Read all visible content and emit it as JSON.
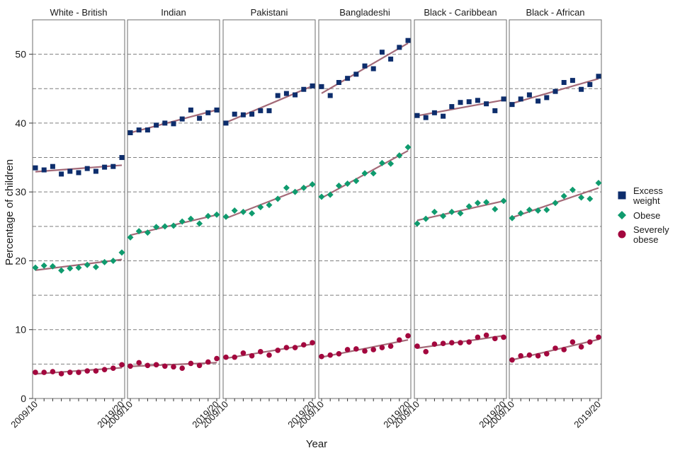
{
  "chart_data": {
    "type": "scatter",
    "title": "",
    "xlabel": "Year",
    "ylabel": "Percentage of children",
    "ylim": [
      0,
      55
    ],
    "yticks": [
      0,
      10,
      20,
      30,
      40,
      50
    ],
    "x_first_label": "2009/10",
    "x_last_label": "2019/20",
    "n_years": 11,
    "colors": {
      "excess": "#0d2d6c",
      "obese": "#0f9b6e",
      "severe": "#a3073e",
      "trend": "#9a5a6a",
      "grid": "#7f7f7f"
    },
    "legend": [
      {
        "key": "excess",
        "label_lines": [
          "Excess",
          "weight"
        ],
        "shape": "square"
      },
      {
        "key": "obese",
        "label_lines": [
          "Obese"
        ],
        "shape": "diamond"
      },
      {
        "key": "severe",
        "label_lines": [
          "Severely",
          "obese"
        ],
        "shape": "circle"
      }
    ],
    "panels": [
      {
        "name": "White - British",
        "excess": [
          33.5,
          33.2,
          33.7,
          32.6,
          33.0,
          32.8,
          33.4,
          33.0,
          33.6,
          33.7,
          35.0
        ],
        "obese": [
          19.0,
          19.3,
          19.2,
          18.6,
          18.9,
          19.0,
          19.4,
          19.1,
          19.8,
          20.0,
          21.2
        ],
        "severe": [
          3.8,
          3.8,
          3.9,
          3.6,
          3.8,
          3.8,
          4.0,
          4.0,
          4.2,
          4.4,
          4.9
        ]
      },
      {
        "name": "Indian",
        "excess": [
          38.6,
          39.0,
          39.0,
          39.7,
          40.0,
          39.9,
          40.6,
          41.9,
          40.7,
          41.5,
          41.9
        ],
        "obese": [
          23.4,
          24.3,
          24.1,
          24.9,
          25.0,
          25.1,
          25.7,
          26.1,
          25.4,
          26.5,
          26.7
        ],
        "severe": [
          4.7,
          5.2,
          4.8,
          4.9,
          4.7,
          4.6,
          4.4,
          5.1,
          4.8,
          5.3,
          5.8
        ]
      },
      {
        "name": "Pakistani",
        "excess": [
          40.0,
          41.3,
          41.2,
          41.3,
          41.8,
          41.8,
          44.0,
          44.3,
          44.1,
          44.9,
          45.4
        ],
        "obese": [
          26.4,
          27.3,
          27.1,
          26.9,
          27.8,
          28.1,
          29.0,
          30.6,
          30.0,
          30.6,
          31.1
        ],
        "severe": [
          6.0,
          6.0,
          6.6,
          6.2,
          6.8,
          6.3,
          7.0,
          7.4,
          7.4,
          7.8,
          8.1
        ]
      },
      {
        "name": "Bangladeshi",
        "excess": [
          45.3,
          44.0,
          45.9,
          46.5,
          47.1,
          48.3,
          47.9,
          50.3,
          49.3,
          51.0,
          52.0
        ],
        "obese": [
          29.3,
          29.6,
          30.9,
          31.2,
          31.6,
          32.7,
          32.7,
          34.2,
          34.1,
          35.3,
          36.5
        ],
        "severe": [
          6.1,
          6.3,
          6.5,
          7.1,
          7.2,
          6.9,
          7.1,
          7.4,
          7.6,
          8.5,
          9.1
        ]
      },
      {
        "name": "Black - Caribbean",
        "excess": [
          41.1,
          40.8,
          41.5,
          41.0,
          42.4,
          43.0,
          43.1,
          43.3,
          42.8,
          41.8,
          43.5
        ],
        "obese": [
          25.4,
          26.1,
          27.1,
          26.5,
          27.1,
          26.9,
          27.9,
          28.4,
          28.5,
          27.5,
          28.7
        ],
        "severe": [
          7.6,
          6.8,
          7.9,
          8.0,
          8.1,
          8.1,
          8.2,
          8.9,
          9.2,
          8.7,
          8.9
        ]
      },
      {
        "name": "Black - African",
        "excess": [
          42.7,
          43.5,
          44.1,
          43.2,
          43.7,
          44.6,
          45.9,
          46.2,
          44.9,
          45.6,
          46.8
        ],
        "obese": [
          26.2,
          26.9,
          27.4,
          27.3,
          27.4,
          28.4,
          29.4,
          30.3,
          29.2,
          29.0,
          31.3
        ],
        "severe": [
          5.6,
          6.2,
          6.3,
          6.2,
          6.5,
          7.3,
          7.1,
          8.2,
          7.5,
          8.2,
          8.9
        ]
      }
    ]
  }
}
